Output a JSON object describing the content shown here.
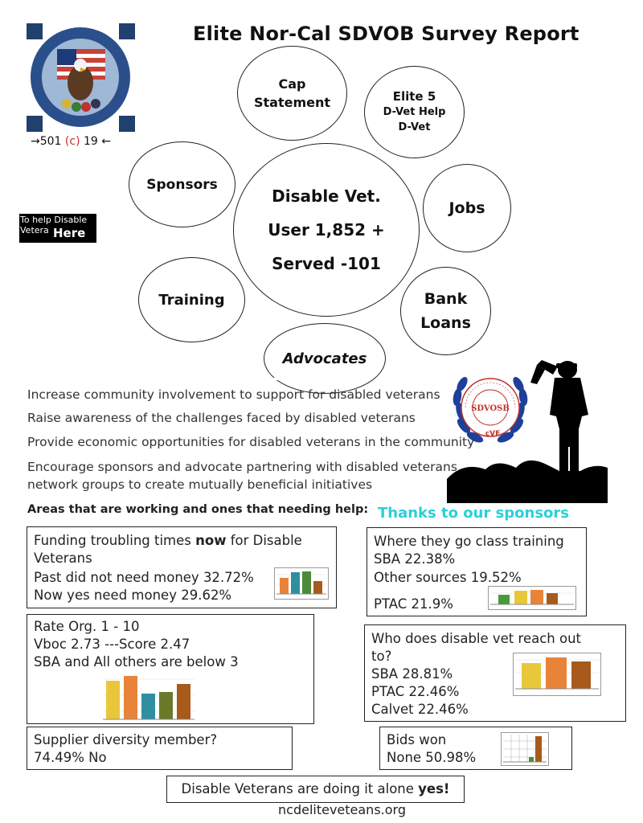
{
  "title": "Elite Nor-Cal SDVOB Survey Report",
  "logo_caption": {
    "pre": "→501 ",
    "mid": "(c)",
    "post": " 19 ←"
  },
  "bubbles": {
    "cap": [
      "Cap",
      "Statement"
    ],
    "elite": [
      "Elite 5",
      "D-Vet Help",
      "D-Vet"
    ],
    "sponsors": "Sponsors",
    "center": [
      "Disable Vet.",
      "User 1,852 +",
      "Served -101"
    ],
    "jobs": "Jobs",
    "training": "Training",
    "bank": [
      "Bank",
      "Loans"
    ],
    "advocates": "Advocates"
  },
  "help_link": {
    "text": "To help Disable Vetera",
    "here": "Here"
  },
  "goals": [
    "Increase community involvement to support for disabled veterans",
    "Raise awareness of the challenges faced by disabled veterans",
    "Provide economic opportunities for disabled veterans in the community",
    "Encourage sponsors and advocate partnering with disabled veterans",
    "network groups to create mutually beneficial initiatives"
  ],
  "areas_heading": "Areas that are working and ones that needing help:",
  "thanks": "Thanks to our sponsors",
  "boxes": {
    "funding": {
      "l1_pre": "Funding troubling times ",
      "l1_bold": "now",
      "l1_post": " for Disable",
      "l2": "Veterans",
      "l3": "Past did not need money 32.72%",
      "l4": "Now yes need money 29.62%"
    },
    "training": {
      "l1": "Where they go class training",
      "l2": "SBA 22.38%",
      "l3": "Other sources 19.52%",
      "l4": "PTAC 21.9%"
    },
    "rate": {
      "l1": "Rate Org. 1 - 10",
      "l2": "Vboc 2.73 ---Score 2.47",
      "l3": "SBA and All others are below 3"
    },
    "reach": {
      "l1": "Who does disable vet reach out",
      "l2": "to?",
      "l3": "SBA 28.81%",
      "l4": "PTAC 22.46%",
      "l5": "Calvet 22.46%"
    },
    "supplier": {
      "l1": "Supplier diversity member?",
      "l2": "74.49% No"
    },
    "bids": {
      "l1": "Bids won",
      "l2": "None 50.98%"
    }
  },
  "footer": {
    "pre": "Disable Veterans are doing it alone ",
    "bold": "yes!"
  },
  "url": "ncdeliteveteans.org",
  "colors": {
    "accent": "#2bd0d6",
    "badge_blue": "#1e3f9a",
    "badge_red": "#c0312b"
  }
}
